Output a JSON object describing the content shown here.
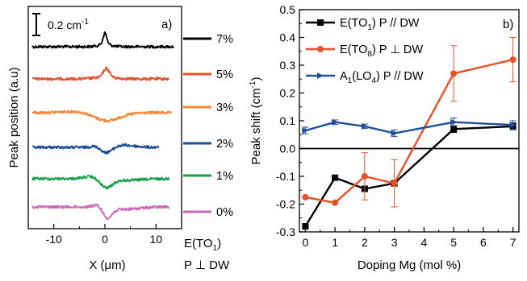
{
  "chart_data": [
    {
      "panel": "a)",
      "type": "line",
      "xlabel_prefix": "X (",
      "xlabel_mu": "μ",
      "xlabel_suffix": "m)",
      "ylabel": "Peak position (a.u)",
      "xlim": [
        -15,
        15
      ],
      "xticks": [
        -10,
        0,
        10
      ],
      "scale_bar": "0.2 cm",
      "scale_bar_sup": "-1",
      "mode_label_main": "E(TO",
      "mode_label_sub": "1",
      "mode_label_close": ")",
      "mode_label_line2": "P ⊥ DW",
      "series": [
        {
          "name": "7%",
          "color": "#000000",
          "offset": 7,
          "x_end": 13.5
        },
        {
          "name": "5%",
          "color": "#e8502a",
          "offset": 6,
          "x_end": 12.5
        },
        {
          "name": "3%",
          "color": "#f0883c",
          "offset": 5,
          "x_end": 13.0
        },
        {
          "name": "2%",
          "color": "#1f4e9a",
          "offset": 4,
          "x_end": 10.5
        },
        {
          "name": "1%",
          "color": "#19a04a",
          "offset": 3,
          "x_end": 12.5
        },
        {
          "name": "0%",
          "color": "#cc66bb",
          "offset": 2,
          "x_end": 12.5
        }
      ]
    },
    {
      "panel": "b)",
      "type": "line",
      "xlabel": "Doping Mg (mol %)",
      "ylabel_prefix": "Peak shift (cm",
      "ylabel_sup": "-1",
      "ylabel_suffix": ")",
      "xlim": [
        -0.2,
        7.2
      ],
      "ylim": [
        -0.3,
        0.5
      ],
      "xticks": [
        0,
        1,
        2,
        3,
        4,
        5,
        6,
        7
      ],
      "yticks": [
        "-0.3",
        "-0.2",
        "-0.1",
        "0.0",
        "0.1",
        "0.2",
        "0.3",
        "0.4",
        "0.5"
      ],
      "legend_position": "top-left",
      "series": [
        {
          "label_main": "E(TO",
          "label_sub": "1",
          "label_rest": ") P // DW",
          "color": "#000000",
          "marker": "square",
          "x": [
            0,
            1,
            2,
            3,
            5,
            7
          ],
          "y": [
            -0.28,
            -0.105,
            -0.145,
            -0.125,
            0.07,
            0.08
          ],
          "err": [
            0.01,
            0.0,
            0.01,
            0.01,
            0.012,
            0.012
          ]
        },
        {
          "label_main": "E(TO",
          "label_sub": "8",
          "label_rest": ") P ⊥ DW",
          "color": "#e8502a",
          "marker": "circle",
          "x": [
            0,
            1,
            2,
            3,
            5,
            7
          ],
          "y": [
            -0.175,
            -0.195,
            -0.1,
            -0.125,
            0.27,
            0.32
          ],
          "err": [
            0.0,
            0.0,
            0.085,
            0.085,
            0.1,
            0.08
          ]
        },
        {
          "label_main": "A",
          "label_sub": "1",
          "label_rest": "(LO",
          "label_sub2": "4",
          "label_rest2": ") P // DW",
          "color": "#1f4e9a",
          "marker": "triangle-right",
          "x": [
            0,
            1,
            2,
            3,
            5,
            7
          ],
          "y": [
            0.065,
            0.095,
            0.08,
            0.055,
            0.095,
            0.085
          ],
          "err": [
            0.012,
            0.008,
            0.008,
            0.012,
            0.015,
            0.015
          ]
        }
      ]
    }
  ]
}
